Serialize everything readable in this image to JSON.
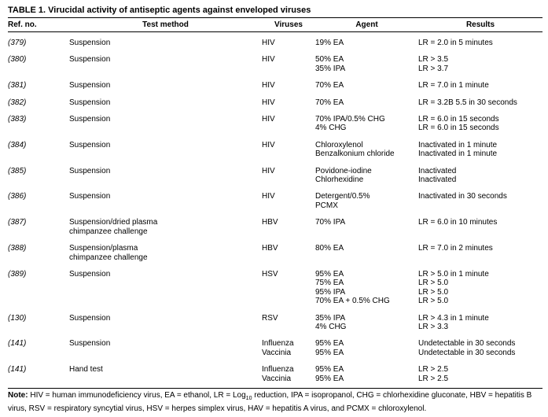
{
  "table": {
    "title": "TABLE 1. Virucidal activity of antiseptic agents against enveloped viruses",
    "headers": [
      "Ref. no.",
      "Test method",
      "Viruses",
      "Agent",
      "Results"
    ],
    "rows": [
      [
        [
          "(379)"
        ],
        [
          "Suspension"
        ],
        [
          "HIV"
        ],
        [
          "19% EA"
        ],
        [
          "LR = 2.0 in 5 minutes"
        ]
      ],
      [
        [
          "(380)"
        ],
        [
          "Suspension"
        ],
        [
          "HIV"
        ],
        [
          "50% EA",
          "35% IPA"
        ],
        [
          "LR > 3.5",
          "LR > 3.7"
        ]
      ],
      [
        [
          "(381)"
        ],
        [
          "Suspension"
        ],
        [
          "HIV"
        ],
        [
          "70% EA"
        ],
        [
          "LR = 7.0 in 1 minute"
        ]
      ],
      [
        [
          "(382)"
        ],
        [
          "Suspension"
        ],
        [
          "HIV"
        ],
        [
          "70% EA"
        ],
        [
          "LR = 3.2B 5.5 in 30 seconds"
        ]
      ],
      [
        [
          "(383)"
        ],
        [
          "Suspension"
        ],
        [
          "HIV"
        ],
        [
          "70% IPA/0.5% CHG",
          "4% CHG"
        ],
        [
          "LR = 6.0 in 15 seconds",
          "LR = 6.0 in 15 seconds"
        ]
      ],
      [
        [
          "(384)"
        ],
        [
          "Suspension"
        ],
        [
          "HIV"
        ],
        [
          "Chloroxylenol",
          "Benzalkonium chloride"
        ],
        [
          "Inactivated in 1 minute",
          "Inactivated in 1 minute"
        ]
      ],
      [
        [
          "(385)"
        ],
        [
          "Suspension"
        ],
        [
          "HIV"
        ],
        [
          "Povidone-iodine",
          "Chlorhexidine"
        ],
        [
          "Inactivated",
          "Inactivated"
        ]
      ],
      [
        [
          "(386)"
        ],
        [
          "Suspension"
        ],
        [
          "HIV"
        ],
        [
          "Detergent/0.5%",
          "PCMX"
        ],
        [
          "Inactivated in 30 seconds"
        ]
      ],
      [
        [
          "(387)"
        ],
        [
          "Suspension/dried plasma",
          "chimpanzee challenge"
        ],
        [
          "HBV"
        ],
        [
          "70% IPA"
        ],
        [
          "LR = 6.0 in 10 minutes"
        ]
      ],
      [
        [
          "(388)"
        ],
        [
          "Suspension/plasma",
          "chimpanzee challenge"
        ],
        [
          "HBV"
        ],
        [
          "80% EA"
        ],
        [
          "LR = 7.0 in 2 minutes"
        ]
      ],
      [
        [
          "(389)"
        ],
        [
          "Suspension"
        ],
        [
          "HSV"
        ],
        [
          "95% EA",
          "75% EA",
          "95% IPA",
          "70% EA + 0.5% CHG"
        ],
        [
          "LR > 5.0 in 1 minute",
          "LR > 5.0",
          "LR > 5.0",
          "LR > 5.0"
        ]
      ],
      [
        [
          "(130)"
        ],
        [
          "Suspension"
        ],
        [
          "RSV"
        ],
        [
          "35% IPA",
          "4% CHG"
        ],
        [
          "LR > 4.3 in 1 minute",
          "LR > 3.3"
        ]
      ],
      [
        [
          "(141)"
        ],
        [
          "Suspension"
        ],
        [
          "Influenza",
          "Vaccinia"
        ],
        [
          "95% EA",
          "95% EA"
        ],
        [
          "Undetectable in 30 seconds",
          "Undetectable in 30 seconds"
        ]
      ],
      [
        [
          "(141)"
        ],
        [
          "Hand test"
        ],
        [
          "Influenza",
          "Vaccinia"
        ],
        [
          "95% EA",
          "95% EA"
        ],
        [
          "LR > 2.5",
          "LR > 2.5"
        ]
      ]
    ]
  },
  "note": {
    "label": "Note:",
    "text_before": "HIV = human immunodeficiency virus, EA = ethanol, LR = Log",
    "subscript": "10",
    "text_after": " reduction, IPA = isopropanol, CHG = chlorhexidine gluconate, HBV = hepatitis B virus, RSV = respiratory syncytial virus, HSV = herpes simplex virus, HAV = hepatitis A virus, and PCMX = chloroxylenol."
  }
}
